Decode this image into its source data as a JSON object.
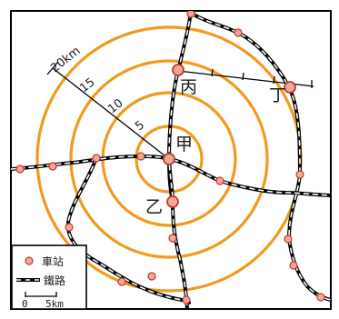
{
  "ring_labels": [
    "5",
    "10",
    "15",
    "20km"
  ],
  "places": {
    "jia": "甲",
    "yi": "乙",
    "bing": "丙",
    "ding": "丁"
  },
  "legend": {
    "station": "車站",
    "railway": "鐵路",
    "scale_start": "0",
    "scale_end": "5km"
  },
  "colors": {
    "ring": "#f29a1c",
    "station_fill": "#f2a79a",
    "station_stroke": "#c0392b",
    "rail": "#000000",
    "frame": "#000000"
  }
}
